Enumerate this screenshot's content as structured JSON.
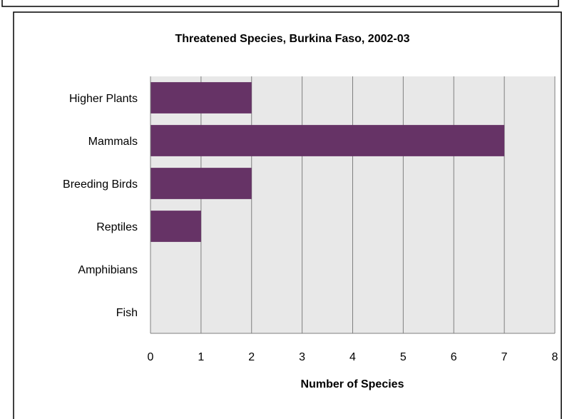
{
  "chart_data": {
    "type": "bar",
    "orientation": "horizontal",
    "title": "Threatened Species, Burkina Faso, 2002-03",
    "categories": [
      "Higher Plants",
      "Mammals",
      "Breeding Birds",
      "Reptiles",
      "Amphibians",
      "Fish"
    ],
    "values": [
      2,
      7,
      2,
      1,
      0,
      0
    ],
    "xlabel": "Number of Species",
    "ylabel": "",
    "xlim": [
      0,
      8
    ],
    "xticks": [
      "0",
      "1",
      "2",
      "3",
      "4",
      "5",
      "6",
      "7",
      "8"
    ],
    "grid": "vertical",
    "legend": "none",
    "colors": {
      "bar": "#663366",
      "plot_background": "#e8e8e8",
      "grid": "#7f7f7f",
      "border": "#000000"
    }
  }
}
